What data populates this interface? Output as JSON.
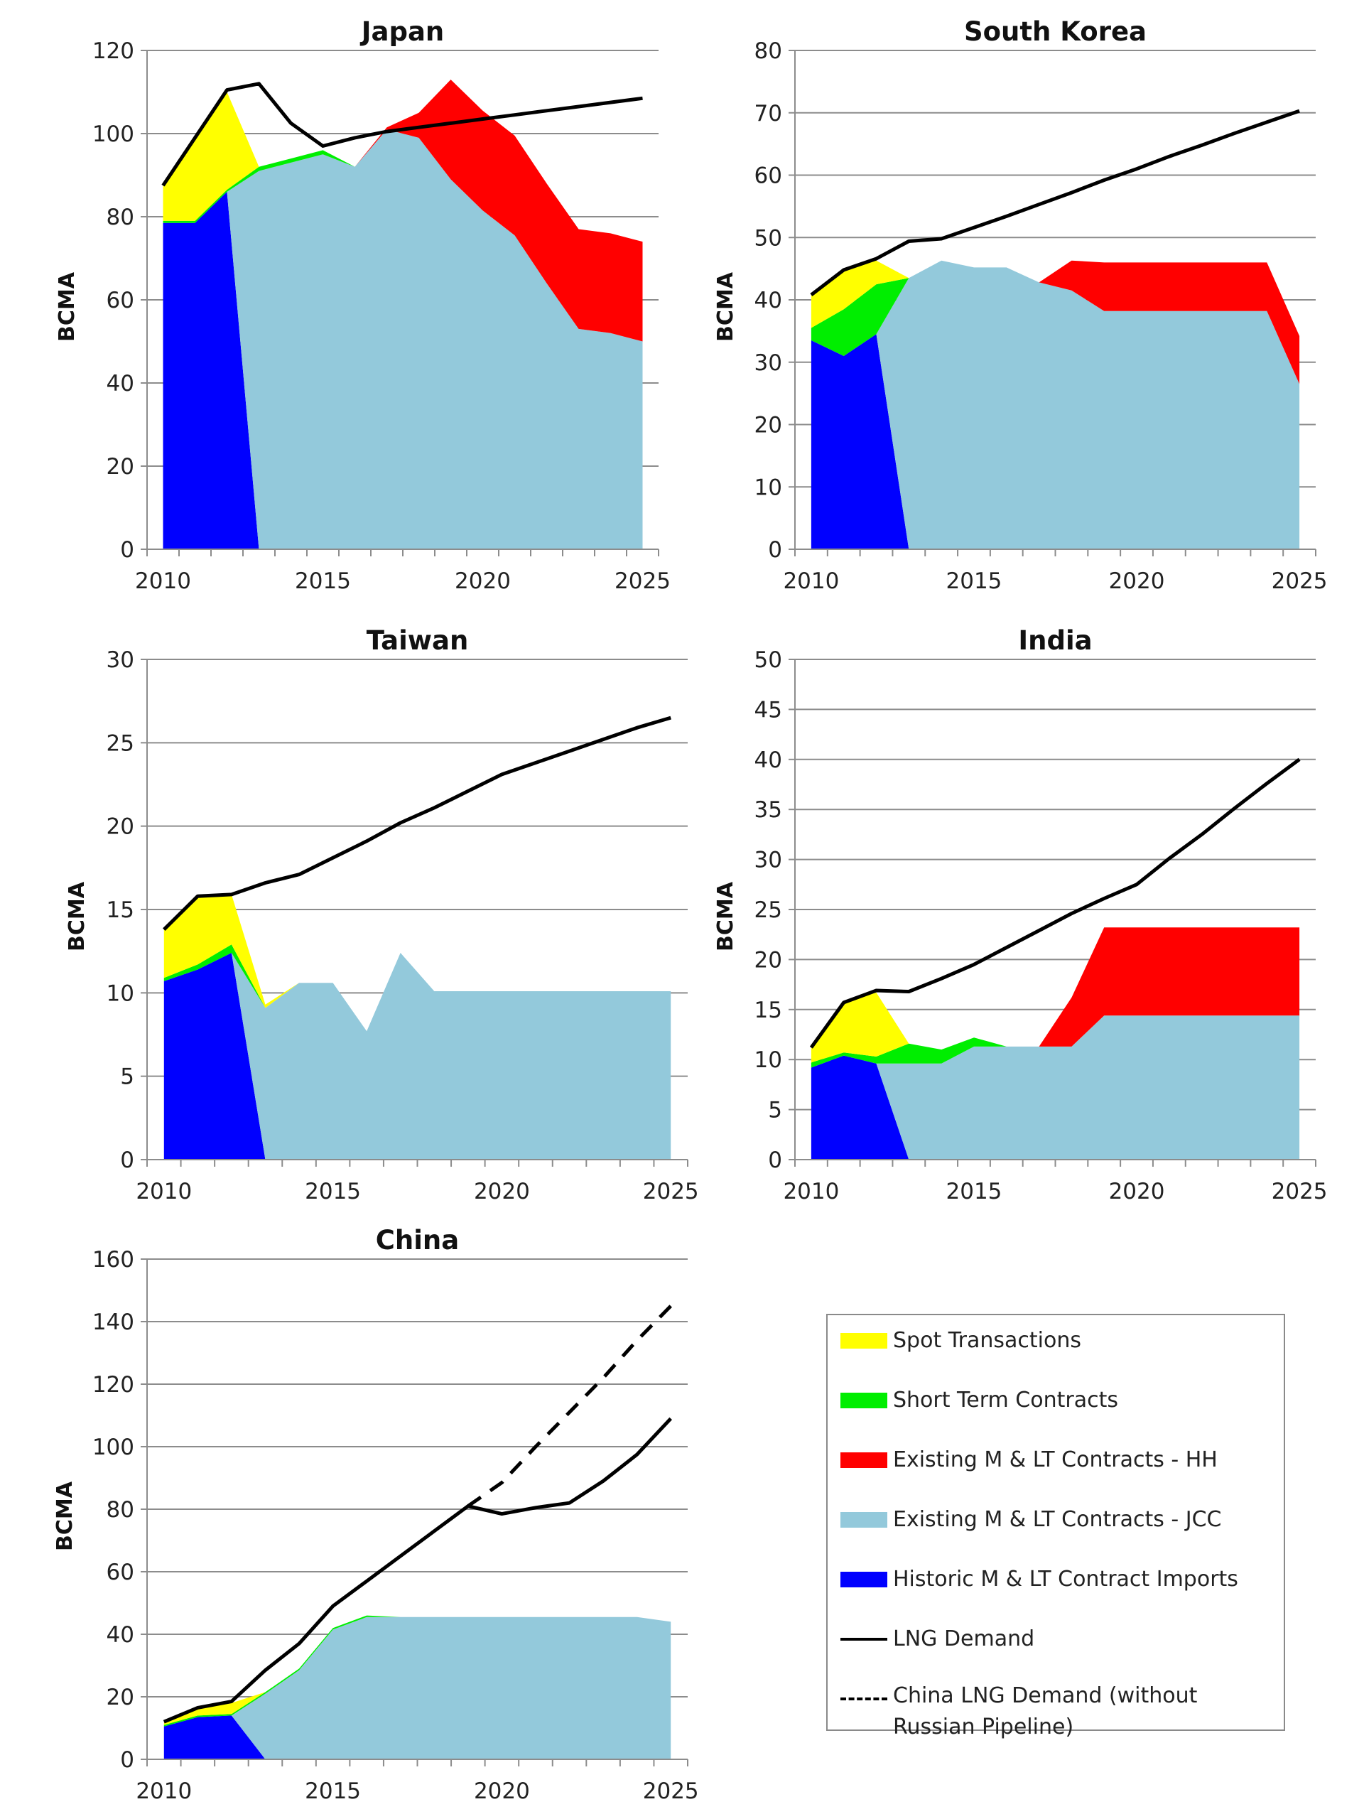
{
  "chart_data": [
    {
      "type": "area",
      "title": "Japan",
      "ylabel": "BCMA",
      "ylim": [
        0,
        120
      ],
      "yticks": [
        "0",
        "20",
        "40",
        "60",
        "80",
        "100",
        "120"
      ],
      "grid": true,
      "x": [
        2010,
        2011,
        2012,
        2013,
        2014,
        2015,
        2016,
        2017,
        2018,
        2019,
        2020,
        2021,
        2022,
        2023,
        2024,
        2025
      ],
      "xticklabels": [
        "2010",
        "2015",
        "2020",
        "2025"
      ],
      "series": [
        {
          "key": "historic",
          "values": [
            78.5,
            78.5,
            86,
            0,
            0,
            0,
            0,
            0,
            0,
            0,
            0,
            0,
            0,
            0,
            0,
            0
          ]
        },
        {
          "key": "jcc",
          "values": [
            0,
            0,
            0,
            91,
            93,
            95,
            92,
            101,
            99,
            89,
            81.5,
            75.5,
            64,
            53,
            52,
            50
          ]
        },
        {
          "key": "hh",
          "values": [
            0,
            0,
            0,
            0,
            0,
            0,
            0,
            0.5,
            6,
            24,
            24,
            24,
            24,
            24,
            24,
            24
          ]
        },
        {
          "key": "short",
          "values": [
            0.5,
            0.5,
            0.5,
            1,
            1,
            1,
            0,
            0,
            0,
            0,
            0,
            0,
            0,
            0,
            0,
            0
          ]
        },
        {
          "key": "spot",
          "values": [
            8.5,
            20,
            23.5,
            0,
            0,
            0,
            0,
            0,
            0,
            0,
            0,
            0,
            0,
            0,
            0,
            0
          ]
        }
      ],
      "demand": [
        87.5,
        99,
        110.5,
        112,
        102.5,
        97,
        99,
        100.5,
        101.5,
        102.5,
        103.5,
        104.5,
        105.5,
        106.5,
        107.5,
        108.5
      ]
    },
    {
      "type": "area",
      "title": "South Korea",
      "ylabel": "BCMA",
      "ylim": [
        0,
        80
      ],
      "yticks": [
        "0",
        "10",
        "20",
        "30",
        "40",
        "50",
        "60",
        "70",
        "80"
      ],
      "grid": true,
      "x": [
        2010,
        2011,
        2012,
        2013,
        2014,
        2015,
        2016,
        2017,
        2018,
        2019,
        2020,
        2021,
        2022,
        2023,
        2024,
        2025
      ],
      "xticklabels": [
        "2010",
        "2015",
        "2020",
        "2025"
      ],
      "series": [
        {
          "key": "historic",
          "values": [
            33.5,
            31,
            34.5,
            0,
            0,
            0,
            0,
            0,
            0,
            0,
            0,
            0,
            0,
            0,
            0,
            0
          ]
        },
        {
          "key": "jcc",
          "values": [
            0,
            0,
            0,
            43.5,
            46.3,
            45.2,
            45.2,
            42.8,
            41.5,
            38.2,
            38.2,
            38.2,
            38.2,
            38.2,
            38.2,
            26.5
          ]
        },
        {
          "key": "hh",
          "values": [
            0,
            0,
            0,
            0,
            0,
            0,
            0,
            0,
            4.8,
            7.8,
            7.8,
            7.8,
            7.8,
            7.8,
            7.8,
            7.7
          ]
        },
        {
          "key": "short",
          "values": [
            2,
            7.5,
            8,
            0,
            0,
            0,
            0,
            0,
            0,
            0,
            0,
            0,
            0,
            0,
            0,
            0
          ]
        },
        {
          "key": "spot",
          "values": [
            5.3,
            6.3,
            3.8,
            0,
            0,
            0,
            0,
            0,
            0,
            0,
            0,
            0,
            0,
            0,
            0,
            0
          ]
        }
      ],
      "demand": [
        40.8,
        44.8,
        46.6,
        49.4,
        49.8,
        51.6,
        53.4,
        55.3,
        57.2,
        59.2,
        61,
        63,
        64.8,
        66.7,
        68.5,
        70.3
      ]
    },
    {
      "type": "area",
      "title": "Taiwan",
      "ylabel": "BCMA",
      "ylim": [
        0,
        30
      ],
      "yticks": [
        "0",
        "5",
        "10",
        "15",
        "20",
        "25",
        "30"
      ],
      "grid": true,
      "x": [
        2010,
        2011,
        2012,
        2013,
        2014,
        2015,
        2016,
        2017,
        2018,
        2019,
        2020,
        2021,
        2022,
        2023,
        2024,
        2025
      ],
      "xticklabels": [
        "2010",
        "2015",
        "2020",
        "2025"
      ],
      "series": [
        {
          "key": "historic",
          "values": [
            10.7,
            11.4,
            12.4,
            0,
            0,
            0,
            0,
            0,
            0,
            0,
            0,
            0,
            0,
            0,
            0,
            0
          ]
        },
        {
          "key": "jcc",
          "values": [
            0,
            0,
            0,
            9.1,
            10.6,
            10.6,
            7.7,
            12.4,
            10.1,
            10.1,
            10.1,
            10.1,
            10.1,
            10.1,
            10.1,
            10.1
          ]
        },
        {
          "key": "hh",
          "values": [
            0,
            0,
            0,
            0,
            0,
            0,
            0,
            0,
            0,
            0,
            0,
            0,
            0,
            0,
            0,
            0
          ]
        },
        {
          "key": "short",
          "values": [
            0.2,
            0.3,
            0.5,
            0,
            0,
            0,
            0,
            0,
            0,
            0,
            0,
            0,
            0,
            0,
            0,
            0
          ]
        },
        {
          "key": "spot",
          "values": [
            2.9,
            4.1,
            3,
            0.2,
            0,
            0,
            0,
            0,
            0,
            0,
            0,
            0,
            0,
            0,
            0,
            0
          ]
        }
      ],
      "demand": [
        13.8,
        15.8,
        15.9,
        16.6,
        17.1,
        18.1,
        19.1,
        20.2,
        21.1,
        22.1,
        23.1,
        23.8,
        24.5,
        25.2,
        25.9,
        26.5
      ]
    },
    {
      "type": "area",
      "title": "India",
      "ylabel": "BCMA",
      "ylim": [
        0,
        50
      ],
      "yticks": [
        "0",
        "5",
        "10",
        "15",
        "20",
        "25",
        "30",
        "35",
        "40",
        "45",
        "50"
      ],
      "grid": true,
      "x": [
        2010,
        2011,
        2012,
        2013,
        2014,
        2015,
        2016,
        2017,
        2018,
        2019,
        2020,
        2021,
        2022,
        2023,
        2024,
        2025
      ],
      "xticklabels": [
        "2010",
        "2015",
        "2020",
        "2025"
      ],
      "series": [
        {
          "key": "historic",
          "values": [
            9.2,
            10.4,
            9.6,
            0,
            0,
            0,
            0,
            0,
            0,
            0,
            0,
            0,
            0,
            0,
            0,
            0
          ]
        },
        {
          "key": "jcc",
          "values": [
            0,
            0,
            0,
            9.6,
            9.6,
            11.3,
            11.3,
            11.3,
            11.3,
            14.4,
            14.4,
            14.4,
            14.4,
            14.4,
            14.4,
            14.4
          ]
        },
        {
          "key": "hh",
          "values": [
            0,
            0,
            0,
            0,
            0,
            0,
            0,
            0,
            4.9,
            8.8,
            8.8,
            8.8,
            8.8,
            8.8,
            8.8,
            8.8
          ]
        },
        {
          "key": "short",
          "values": [
            0.5,
            0.3,
            0.7,
            2,
            1.4,
            0.9,
            0,
            0,
            0,
            0,
            0,
            0,
            0,
            0,
            0,
            0
          ]
        },
        {
          "key": "spot",
          "values": [
            1.5,
            5,
            6.4,
            0,
            0,
            0,
            0,
            0,
            0,
            0,
            0,
            0,
            0,
            0,
            0,
            0
          ]
        }
      ],
      "demand": [
        11.2,
        15.7,
        16.9,
        16.8,
        18.1,
        19.5,
        21.2,
        22.9,
        24.6,
        26.1,
        27.5,
        30.1,
        32.5,
        35.1,
        37.6,
        40
      ]
    },
    {
      "type": "area",
      "title": "China",
      "ylabel": "BCMA",
      "ylim": [
        0,
        160
      ],
      "yticks": [
        "0",
        "20",
        "40",
        "60",
        "80",
        "100",
        "120",
        "140",
        "160"
      ],
      "grid": true,
      "x": [
        2010,
        2011,
        2012,
        2013,
        2014,
        2015,
        2016,
        2017,
        2018,
        2019,
        2020,
        2021,
        2022,
        2023,
        2024,
        2025
      ],
      "xticklabels": [
        "2010",
        "2015",
        "2020",
        "2025"
      ],
      "series": [
        {
          "key": "historic",
          "values": [
            10.5,
            13.5,
            14,
            0,
            0,
            0,
            0,
            0,
            0,
            0,
            0,
            0,
            0,
            0,
            0,
            0
          ]
        },
        {
          "key": "jcc",
          "values": [
            0,
            0,
            0,
            21,
            28.5,
            41.5,
            45.5,
            45.5,
            45.5,
            45.5,
            45.5,
            45.5,
            45.5,
            45.5,
            45.5,
            44
          ]
        },
        {
          "key": "hh",
          "values": [
            0,
            0,
            0,
            0,
            0,
            0,
            0,
            0,
            0,
            0,
            0,
            0,
            0,
            0,
            0,
            0
          ]
        },
        {
          "key": "short",
          "values": [
            0.5,
            0.5,
            0.5,
            0.5,
            0.5,
            0.5,
            0.5,
            0,
            0,
            0,
            0,
            0,
            0,
            0,
            0,
            0
          ]
        },
        {
          "key": "spot",
          "values": [
            0.8,
            2,
            3.5,
            0,
            0,
            0,
            0,
            0,
            0,
            0,
            0,
            0,
            0,
            0,
            0,
            0
          ]
        }
      ],
      "demand": [
        12,
        16.5,
        18.5,
        28.5,
        37,
        49,
        57,
        65,
        73,
        81,
        78.5,
        80.5,
        82,
        89,
        97.5,
        109
      ],
      "demand_without_russian_pipeline": [
        null,
        null,
        null,
        null,
        null,
        null,
        null,
        null,
        null,
        81,
        88.5,
        100,
        111,
        122,
        134,
        145
      ]
    }
  ],
  "legend": {
    "placement": "bottom-right",
    "items": [
      {
        "key": "spot",
        "label": "Spot Transactions",
        "color": "#ffff00"
      },
      {
        "key": "short",
        "label": "Short Term Contracts",
        "color": "#00ee00"
      },
      {
        "key": "hh",
        "label": "Existing M & LT Contracts - HH",
        "color": "#ff0000"
      },
      {
        "key": "jcc",
        "label": "Existing M & LT Contracts - JCC",
        "color": "#93c9db"
      },
      {
        "key": "historic",
        "label": "Historic M & LT Contract Imports",
        "color": "#0000ff"
      },
      {
        "key": "demand",
        "label": "LNG Demand",
        "color": "#000000"
      },
      {
        "key": "demand_dashed",
        "label": "China LNG Demand (without Russian Pipeline)",
        "color": "#000000"
      }
    ]
  }
}
